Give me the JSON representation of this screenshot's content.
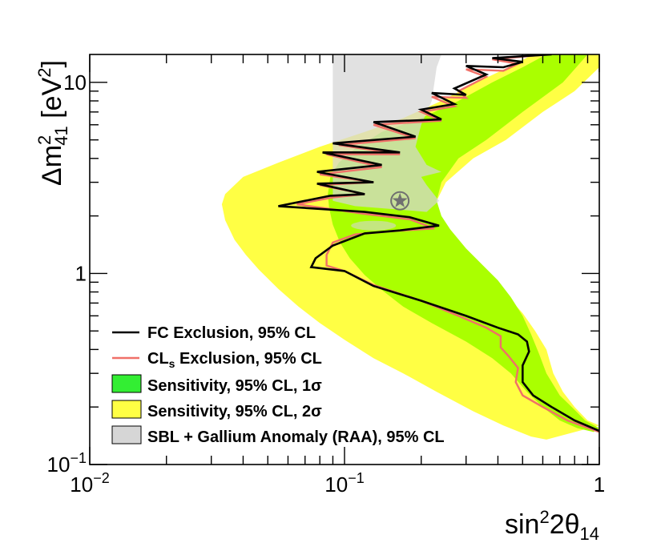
{
  "chart_data": {
    "type": "area",
    "xscale": "log",
    "yscale": "log",
    "xlim": [
      0.01,
      1
    ],
    "ylim": [
      0.1,
      14
    ],
    "xlabel": {
      "pre": "sin",
      "sup": "2",
      "mid": "2θ",
      "sub": "14"
    },
    "ylabel": {
      "pre": "Δm",
      "sup": "2",
      "sub": "41",
      "post1": " [eV",
      "sup2": "2",
      "post2": "]"
    },
    "x_ticks": [
      {
        "value": 0.01,
        "base": "10",
        "exp": "−2"
      },
      {
        "value": 0.1,
        "base": "10",
        "exp": "−1"
      },
      {
        "value": 1,
        "base": "1",
        "exp": ""
      }
    ],
    "y_ticks": [
      {
        "value": 0.1,
        "base": "10",
        "exp": "−1"
      },
      {
        "value": 1,
        "base": "1",
        "exp": ""
      },
      {
        "value": 10,
        "base": "10",
        "exp": ""
      }
    ],
    "colors": {
      "fc": "#000000",
      "cls": "#f07068",
      "sens1": "#aaff00",
      "sens2": "#ffff44",
      "raa": "#d6d6d6",
      "best_fit": "#707070"
    },
    "series": [
      {
        "name": "Sensitivity, 95% CL, 2σ",
        "kind": "band",
        "left": [
          [
            0.55,
            14
          ],
          [
            0.44,
            12
          ],
          [
            0.33,
            10
          ],
          [
            0.24,
            8
          ],
          [
            0.17,
            6.5
          ],
          [
            0.12,
            5.5
          ],
          [
            0.08,
            4.6
          ],
          [
            0.055,
            3.8
          ],
          [
            0.04,
            3.2
          ],
          [
            0.034,
            2.6
          ],
          [
            0.033,
            2.3
          ],
          [
            0.034,
            1.9
          ],
          [
            0.037,
            1.5
          ],
          [
            0.041,
            1.25
          ],
          [
            0.046,
            1.05
          ],
          [
            0.055,
            0.83
          ],
          [
            0.066,
            0.67
          ],
          [
            0.08,
            0.55
          ],
          [
            0.1,
            0.45
          ],
          [
            0.13,
            0.36
          ],
          [
            0.17,
            0.3
          ],
          [
            0.23,
            0.24
          ],
          [
            0.32,
            0.19
          ],
          [
            0.42,
            0.16
          ],
          [
            0.54,
            0.14
          ],
          [
            0.62,
            0.135
          ]
        ],
        "right": [
          [
            1,
            14
          ],
          [
            1,
            12
          ],
          [
            0.8,
            9
          ],
          [
            0.6,
            7
          ],
          [
            0.43,
            5
          ],
          [
            0.32,
            4
          ],
          [
            0.25,
            3
          ],
          [
            0.23,
            2.4
          ],
          [
            0.24,
            1.9
          ],
          [
            0.27,
            1.5
          ],
          [
            0.32,
            1.15
          ],
          [
            0.37,
            0.95
          ],
          [
            0.44,
            0.75
          ],
          [
            0.5,
            0.62
          ],
          [
            0.56,
            0.5
          ],
          [
            0.62,
            0.4
          ],
          [
            0.66,
            0.3
          ],
          [
            0.72,
            0.24
          ],
          [
            0.8,
            0.2
          ],
          [
            0.9,
            0.17
          ],
          [
            1,
            0.16
          ]
        ]
      },
      {
        "name": "Sensitivity, 95% CL, 1σ",
        "kind": "band",
        "left": [
          [
            0.62,
            14
          ],
          [
            0.5,
            12
          ],
          [
            0.38,
            10
          ],
          [
            0.28,
            8
          ],
          [
            0.2,
            6.5
          ],
          [
            0.14,
            5.5
          ],
          [
            0.11,
            4.5
          ],
          [
            0.095,
            3.8
          ],
          [
            0.088,
            3.2
          ],
          [
            0.086,
            2.6
          ],
          [
            0.087,
            2.2
          ],
          [
            0.09,
            1.8
          ],
          [
            0.096,
            1.45
          ],
          [
            0.105,
            1.2
          ],
          [
            0.12,
            0.98
          ],
          [
            0.14,
            0.82
          ],
          [
            0.17,
            0.67
          ],
          [
            0.22,
            0.55
          ],
          [
            0.3,
            0.44
          ],
          [
            0.38,
            0.36
          ],
          [
            0.45,
            0.3
          ],
          [
            0.52,
            0.24
          ],
          [
            0.6,
            0.2
          ],
          [
            0.7,
            0.17
          ],
          [
            0.82,
            0.155
          ],
          [
            0.95,
            0.148
          ]
        ],
        "right": [
          [
            0.9,
            14
          ],
          [
            0.72,
            10
          ],
          [
            0.5,
            7
          ],
          [
            0.36,
            5
          ],
          [
            0.28,
            4
          ],
          [
            0.24,
            3
          ],
          [
            0.23,
            2.4
          ],
          [
            0.24,
            2.0
          ],
          [
            0.26,
            1.7
          ],
          [
            0.3,
            1.35
          ],
          [
            0.35,
            1.1
          ],
          [
            0.4,
            0.92
          ],
          [
            0.45,
            0.75
          ],
          [
            0.5,
            0.6
          ],
          [
            0.54,
            0.48
          ],
          [
            0.58,
            0.38
          ],
          [
            0.62,
            0.3
          ],
          [
            0.7,
            0.23
          ],
          [
            0.78,
            0.2
          ],
          [
            0.88,
            0.17
          ],
          [
            1,
            0.155
          ]
        ]
      },
      {
        "name": "SBL + Gallium Anomaly (RAA), 95% CL",
        "kind": "region",
        "points": [
          [
            0.09,
            14
          ],
          [
            0.24,
            14
          ],
          [
            0.23,
            12
          ],
          [
            0.22,
            8
          ],
          [
            0.2,
            6
          ],
          [
            0.19,
            4.6
          ],
          [
            0.21,
            3.7
          ],
          [
            0.24,
            3.4
          ],
          [
            0.2,
            3.2
          ],
          [
            0.21,
            2.9
          ],
          [
            0.235,
            2.4
          ],
          [
            0.21,
            2.1
          ],
          [
            0.17,
            2.15
          ],
          [
            0.11,
            2.25
          ],
          [
            0.09,
            2.4
          ],
          [
            0.09,
            14
          ]
        ]
      },
      {
        "name": "CLs Exclusion, 95% CL",
        "kind": "curve",
        "points": [
          [
            0.62,
            14
          ],
          [
            0.38,
            13.2
          ],
          [
            0.48,
            12.5
          ],
          [
            0.42,
            11.5
          ],
          [
            0.3,
            11.7
          ],
          [
            0.36,
            10.7
          ],
          [
            0.28,
            9
          ],
          [
            0.3,
            8.3
          ],
          [
            0.22,
            8.4
          ],
          [
            0.27,
            7.5
          ],
          [
            0.2,
            7
          ],
          [
            0.24,
            6.3
          ],
          [
            0.13,
            6
          ],
          [
            0.19,
            5.1
          ],
          [
            0.095,
            4.7
          ],
          [
            0.165,
            4.2
          ],
          [
            0.085,
            4.2
          ],
          [
            0.14,
            3.6
          ],
          [
            0.08,
            3.3
          ],
          [
            0.13,
            3.0
          ],
          [
            0.08,
            2.9
          ],
          [
            0.12,
            2.6
          ],
          [
            0.09,
            2.5
          ],
          [
            0.065,
            2.3
          ],
          [
            0.12,
            2.05
          ],
          [
            0.18,
            1.92
          ],
          [
            0.225,
            1.72
          ],
          [
            0.16,
            1.67
          ],
          [
            0.11,
            1.6
          ],
          [
            0.09,
            1.45
          ],
          [
            0.085,
            1.25
          ],
          [
            0.085,
            1.1
          ],
          [
            0.1,
            1.03
          ],
          [
            0.13,
            0.87
          ],
          [
            0.2,
            0.72
          ],
          [
            0.28,
            0.6
          ],
          [
            0.36,
            0.52
          ],
          [
            0.41,
            0.47
          ],
          [
            0.41,
            0.41
          ],
          [
            0.44,
            0.37
          ],
          [
            0.48,
            0.32
          ],
          [
            0.47,
            0.27
          ],
          [
            0.5,
            0.23
          ],
          [
            0.6,
            0.2
          ],
          [
            0.75,
            0.17
          ],
          [
            1,
            0.148
          ]
        ]
      },
      {
        "name": "FC Exclusion, 95% CL",
        "kind": "curve",
        "points": [
          [
            0.65,
            14
          ],
          [
            0.38,
            13.4
          ],
          [
            0.5,
            12.8
          ],
          [
            0.42,
            12
          ],
          [
            0.3,
            12.2
          ],
          [
            0.36,
            11
          ],
          [
            0.27,
            9.3
          ],
          [
            0.3,
            8.6
          ],
          [
            0.22,
            8.8
          ],
          [
            0.27,
            7.7
          ],
          [
            0.2,
            7.2
          ],
          [
            0.24,
            6.4
          ],
          [
            0.13,
            6.2
          ],
          [
            0.19,
            5.2
          ],
          [
            0.09,
            4.8
          ],
          [
            0.165,
            4.3
          ],
          [
            0.082,
            4.3
          ],
          [
            0.14,
            3.7
          ],
          [
            0.078,
            3.4
          ],
          [
            0.13,
            3.0
          ],
          [
            0.078,
            2.95
          ],
          [
            0.12,
            2.6
          ],
          [
            0.088,
            2.55
          ],
          [
            0.055,
            2.25
          ],
          [
            0.12,
            2.1
          ],
          [
            0.18,
            1.97
          ],
          [
            0.235,
            1.78
          ],
          [
            0.165,
            1.68
          ],
          [
            0.12,
            1.62
          ],
          [
            0.09,
            1.4
          ],
          [
            0.077,
            1.2
          ],
          [
            0.074,
            1.08
          ],
          [
            0.1,
            1.03
          ],
          [
            0.13,
            0.86
          ],
          [
            0.2,
            0.72
          ],
          [
            0.3,
            0.6
          ],
          [
            0.4,
            0.52
          ],
          [
            0.48,
            0.48
          ],
          [
            0.52,
            0.44
          ],
          [
            0.53,
            0.39
          ],
          [
            0.5,
            0.33
          ],
          [
            0.5,
            0.27
          ],
          [
            0.55,
            0.23
          ],
          [
            0.65,
            0.2
          ],
          [
            0.8,
            0.17
          ],
          [
            1,
            0.15
          ]
        ]
      },
      {
        "name": "best fit",
        "kind": "marker",
        "x": 0.165,
        "y": 2.4
      }
    ],
    "legend": {
      "position": "bottom-left",
      "entries": [
        {
          "key": "fc",
          "style": "line",
          "label": "FC Exclusion, 95% CL"
        },
        {
          "key": "cls",
          "style": "line",
          "label": "CL",
          "label_sub": "s",
          "label_post": " Exclusion, 95% CL"
        },
        {
          "key": "sens1",
          "style": "box",
          "label": "Sensitivity, 95% CL, 1σ",
          "fill": "#33ee33"
        },
        {
          "key": "sens2",
          "style": "box",
          "label": "Sensitivity, 95% CL, 2σ",
          "fill": "#ffff44"
        },
        {
          "key": "raa",
          "style": "box",
          "label": "SBL + Gallium Anomaly (RAA), 95% CL",
          "fill": "#d6d6d6"
        }
      ]
    }
  }
}
